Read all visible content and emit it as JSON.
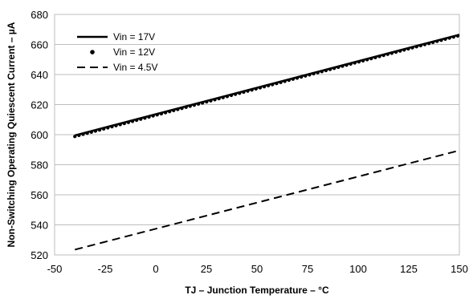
{
  "chart_data": {
    "type": "line",
    "xlabel": "TJ – Junction Temperature – °C",
    "ylabel": "Non-Switching Operating Quiescent Current – µA",
    "xlim": [
      -50,
      150
    ],
    "ylim": [
      520,
      680
    ],
    "x_ticks": [
      "-50",
      "-25",
      "0",
      "25",
      "50",
      "75",
      "100",
      "125",
      "150"
    ],
    "y_ticks": [
      "520",
      "540",
      "560",
      "580",
      "600",
      "620",
      "640",
      "660",
      "680"
    ],
    "grid": "horizontal",
    "legend_position": "top-left",
    "series": [
      {
        "name": "Vin = 17V",
        "style": "solid",
        "color": "#000000",
        "x": [
          -40,
          150
        ],
        "y": [
          599.5,
          666.5
        ]
      },
      {
        "name": "Vin = 12V",
        "style": "dotted",
        "color": "#000000",
        "x": [
          -40,
          150
        ],
        "y": [
          598.8,
          666.0
        ]
      },
      {
        "name": "Vin = 4.5V",
        "style": "dashed",
        "color": "#000000",
        "x": [
          -40,
          150
        ],
        "y": [
          523.5,
          589.5
        ]
      }
    ]
  }
}
